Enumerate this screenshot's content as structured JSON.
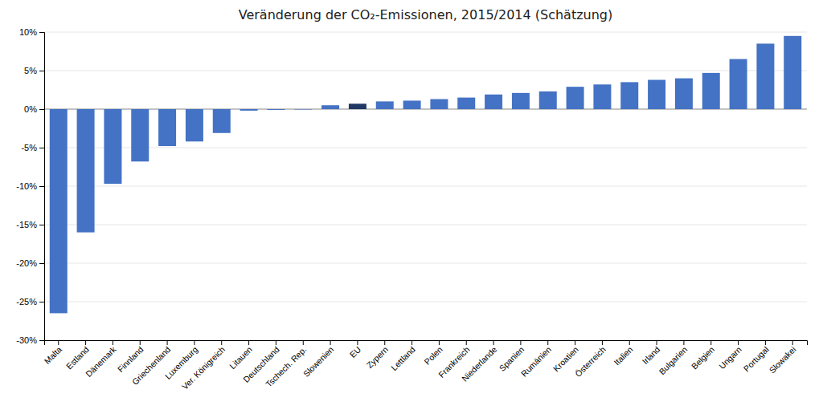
{
  "chart_data": {
    "type": "bar",
    "title": "Veränderung der CO₂-Emissionen, 2015/2014 (Schätzung)",
    "categories": [
      "Malta",
      "Estland",
      "Dänemark",
      "Finnland",
      "Griechenland",
      "Luxemburg",
      "Ver. Königreich",
      "Litauen",
      "Deutschland",
      "Tschech. Rep.",
      "Slowenien",
      "EU",
      "Zypern",
      "Lettland",
      "Polen",
      "Frankreich",
      "Niederlande",
      "Spanien",
      "Rumänien",
      "Kroatien",
      "Österreich",
      "Italien",
      "Irland",
      "Bulgarien",
      "Belgien",
      "Ungarn",
      "Portugal",
      "Slowakei"
    ],
    "values": [
      -26.5,
      -16.0,
      -9.7,
      -6.8,
      -4.8,
      -4.2,
      -3.1,
      -0.2,
      -0.1,
      -0.05,
      0.5,
      0.7,
      1.0,
      1.1,
      1.3,
      1.5,
      1.9,
      2.1,
      2.3,
      2.9,
      3.2,
      3.5,
      3.8,
      4.0,
      4.7,
      6.5,
      8.5,
      9.5
    ],
    "colors": [
      "#4472C4",
      "#4472C4",
      "#4472C4",
      "#4472C4",
      "#4472C4",
      "#4472C4",
      "#4472C4",
      "#4472C4",
      "#4472C4",
      "#4472C4",
      "#4472C4",
      "#1F3864",
      "#4472C4",
      "#4472C4",
      "#4472C4",
      "#4472C4",
      "#4472C4",
      "#4472C4",
      "#4472C4",
      "#4472C4",
      "#4472C4",
      "#4472C4",
      "#4472C4",
      "#4472C4",
      "#4472C4",
      "#4472C4",
      "#4472C4",
      "#4472C4"
    ],
    "ylim": [
      -30,
      10
    ],
    "yticks": [
      {
        "value": -30,
        "label": "-30%"
      },
      {
        "value": -25,
        "label": "-25%"
      },
      {
        "value": -20,
        "label": "-20%"
      },
      {
        "value": -15,
        "label": "-15%"
      },
      {
        "value": -10,
        "label": "-10%"
      },
      {
        "value": -5,
        "label": "-5%"
      },
      {
        "value": 0,
        "label": "0%"
      },
      {
        "value": 5,
        "label": "5%"
      },
      {
        "value": 10,
        "label": "10%"
      }
    ],
    "grid": true
  }
}
